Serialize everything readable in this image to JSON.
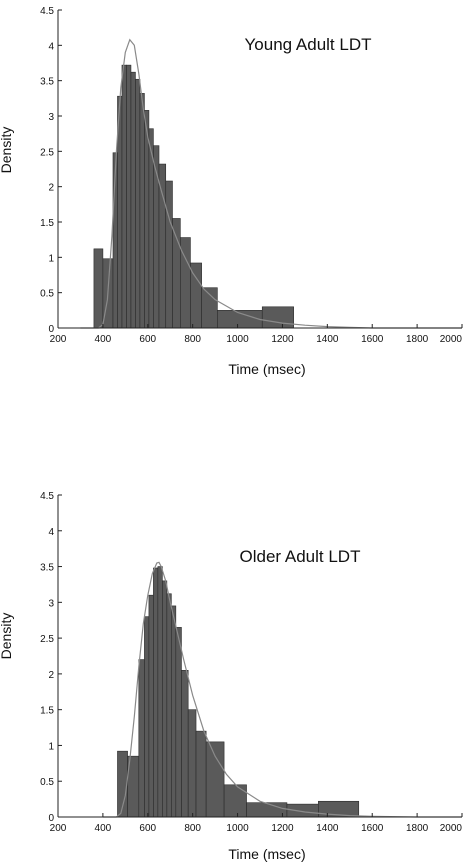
{
  "chart_data": [
    {
      "type": "bar",
      "subtype": "histogram",
      "title": "Young Adult LDT",
      "xlabel": "Time (msec)",
      "ylabel": "Density",
      "xlim": [
        200,
        2000
      ],
      "ylim": [
        0,
        4.5
      ],
      "xticks": [
        200,
        400,
        600,
        800,
        1000,
        1200,
        1400,
        1600,
        1800,
        2000
      ],
      "yticks": [
        0,
        0.5,
        1,
        1.5,
        2,
        2.5,
        3,
        3.5,
        4,
        4.5
      ],
      "ytick_labels": [
        "0",
        "0.5",
        "1",
        "1.5",
        "2",
        "2.5",
        "3",
        "3.5",
        "4",
        "4.5"
      ],
      "grid": false,
      "bins": [
        {
          "x0": 360,
          "x1": 400,
          "value": 1.12
        },
        {
          "x0": 400,
          "x1": 445,
          "value": 0.98
        },
        {
          "x0": 445,
          "x1": 465,
          "value": 2.48
        },
        {
          "x0": 465,
          "x1": 485,
          "value": 3.28
        },
        {
          "x0": 485,
          "x1": 505,
          "value": 3.72
        },
        {
          "x0": 505,
          "x1": 525,
          "value": 3.72
        },
        {
          "x0": 525,
          "x1": 545,
          "value": 3.62
        },
        {
          "x0": 545,
          "x1": 565,
          "value": 3.52
        },
        {
          "x0": 565,
          "x1": 585,
          "value": 3.32
        },
        {
          "x0": 585,
          "x1": 605,
          "value": 3.08
        },
        {
          "x0": 605,
          "x1": 625,
          "value": 2.82
        },
        {
          "x0": 625,
          "x1": 650,
          "value": 2.58
        },
        {
          "x0": 650,
          "x1": 680,
          "value": 2.32
        },
        {
          "x0": 680,
          "x1": 710,
          "value": 2.08
        },
        {
          "x0": 710,
          "x1": 745,
          "value": 1.55
        },
        {
          "x0": 745,
          "x1": 790,
          "value": 1.28
        },
        {
          "x0": 790,
          "x1": 840,
          "value": 0.92
        },
        {
          "x0": 840,
          "x1": 910,
          "value": 0.57
        },
        {
          "x0": 910,
          "x1": 1110,
          "value": 0.25
        },
        {
          "x0": 1110,
          "x1": 1250,
          "value": 0.3
        }
      ],
      "fit_curve": {
        "name": "",
        "x": [
          300,
          380,
          400,
          420,
          440,
          460,
          480,
          500,
          520,
          540,
          560,
          580,
          600,
          630,
          660,
          700,
          750,
          800,
          850,
          900,
          1000,
          1100,
          1200,
          1300,
          1400,
          1500,
          1600,
          1800,
          2000
        ],
        "y": [
          0,
          0,
          0.05,
          0.4,
          1.3,
          2.5,
          3.4,
          3.9,
          4.08,
          4.0,
          3.6,
          3.1,
          2.7,
          2.3,
          1.95,
          1.5,
          1.1,
          0.78,
          0.55,
          0.4,
          0.22,
          0.12,
          0.07,
          0.04,
          0.02,
          0.01,
          0,
          0,
          0
        ]
      }
    },
    {
      "type": "bar",
      "subtype": "histogram",
      "title": "Older Adult LDT",
      "xlabel": "Time (msec)",
      "ylabel": "Density",
      "xlim": [
        200,
        2000
      ],
      "ylim": [
        0,
        4.5
      ],
      "xticks": [
        200,
        400,
        600,
        800,
        1000,
        1200,
        1400,
        1600,
        1800,
        2000
      ],
      "yticks": [
        0,
        0.5,
        1,
        1.5,
        2,
        2.5,
        3,
        3.5,
        4,
        4.5
      ],
      "ytick_labels": [
        "0",
        "0.5",
        "1",
        "1.5",
        "2",
        "2.5",
        "3",
        "3.5",
        "4",
        "4.5"
      ],
      "grid": false,
      "bins": [
        {
          "x0": 465,
          "x1": 510,
          "value": 0.92
        },
        {
          "x0": 510,
          "x1": 560,
          "value": 0.85
        },
        {
          "x0": 560,
          "x1": 585,
          "value": 2.2
        },
        {
          "x0": 585,
          "x1": 605,
          "value": 2.8
        },
        {
          "x0": 605,
          "x1": 625,
          "value": 3.1
        },
        {
          "x0": 625,
          "x1": 645,
          "value": 3.48
        },
        {
          "x0": 645,
          "x1": 665,
          "value": 3.5
        },
        {
          "x0": 665,
          "x1": 685,
          "value": 3.3
        },
        {
          "x0": 685,
          "x1": 705,
          "value": 3.12
        },
        {
          "x0": 705,
          "x1": 725,
          "value": 2.95
        },
        {
          "x0": 725,
          "x1": 750,
          "value": 2.65
        },
        {
          "x0": 750,
          "x1": 780,
          "value": 2.05
        },
        {
          "x0": 780,
          "x1": 815,
          "value": 1.5
        },
        {
          "x0": 815,
          "x1": 860,
          "value": 1.2
        },
        {
          "x0": 860,
          "x1": 940,
          "value": 1.05
        },
        {
          "x0": 940,
          "x1": 1040,
          "value": 0.45
        },
        {
          "x0": 1040,
          "x1": 1220,
          "value": 0.2
        },
        {
          "x0": 1220,
          "x1": 1360,
          "value": 0.18
        },
        {
          "x0": 1360,
          "x1": 1540,
          "value": 0.22
        }
      ],
      "fit_curve": {
        "name": "",
        "x": [
          400,
          460,
          480,
          500,
          520,
          540,
          560,
          580,
          600,
          620,
          640,
          650,
          660,
          680,
          700,
          730,
          760,
          800,
          850,
          900,
          950,
          1000,
          1100,
          1200,
          1300,
          1400,
          1500,
          1600,
          1800,
          2000
        ],
        "y": [
          0,
          0,
          0.05,
          0.3,
          0.8,
          1.4,
          2.1,
          2.7,
          3.1,
          3.4,
          3.55,
          3.56,
          3.5,
          3.3,
          3.0,
          2.6,
          2.2,
          1.7,
          1.2,
          0.85,
          0.6,
          0.42,
          0.22,
          0.12,
          0.07,
          0.04,
          0.02,
          0.01,
          0,
          0
        ]
      }
    }
  ]
}
